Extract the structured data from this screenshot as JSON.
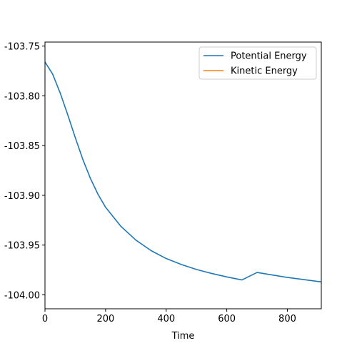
{
  "chart_data": {
    "type": "line",
    "title": "",
    "xlabel": "Time",
    "ylabel": "",
    "xlim": [
      0,
      912
    ],
    "ylim": [
      -104.014,
      -103.746
    ],
    "x_ticks": [
      0,
      200,
      400,
      600,
      800
    ],
    "x_tick_labels": [
      "0",
      "200",
      "400",
      "600",
      "800"
    ],
    "y_ticks": [
      -104.0,
      -103.95,
      -103.9,
      -103.85,
      -103.8,
      -103.75
    ],
    "y_tick_labels": [
      "-104.00",
      "-103.95",
      "-103.90",
      "-103.85",
      "-103.80",
      "-103.75"
    ],
    "grid": false,
    "legend_position": "top-right",
    "series": [
      {
        "name": "Potential Energy",
        "color": "#1f77b4",
        "x": [
          0,
          25,
          50,
          75,
          100,
          125,
          150,
          175,
          200,
          250,
          300,
          350,
          400,
          450,
          500,
          550,
          600,
          650,
          700,
          750,
          800,
          850,
          912
        ],
        "y": [
          -103.766,
          -103.778,
          -103.797,
          -103.819,
          -103.842,
          -103.864,
          -103.883,
          -103.899,
          -103.912,
          -103.931,
          -103.945,
          -103.9555,
          -103.9635,
          -103.9695,
          -103.9745,
          -103.9785,
          -103.982,
          -103.985,
          -103.9775,
          -103.98,
          -103.9825,
          -103.9845,
          -103.987
        ]
      },
      {
        "name": "Kinetic Energy",
        "color": "#ff7f0e",
        "x": [],
        "y": []
      }
    ]
  }
}
